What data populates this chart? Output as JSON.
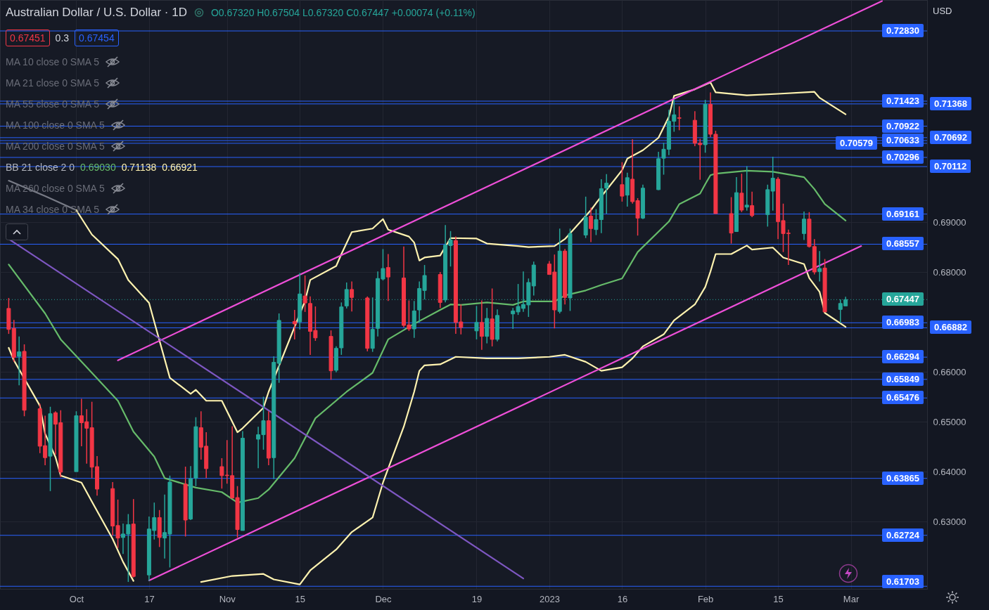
{
  "chart_data": {
    "type": "candlestick",
    "title": "Australian Dollar / U.S. Dollar · 1D",
    "subtitle": "O0.67320 H0.67504 L0.67320 C0.67447 +0.00074 (+0.11%)",
    "annotations": [
      "0.67451",
      "0.3",
      "0.67454",
      "MA 10 close 0 SMA 5",
      "MA 21 close 0 SMA 5",
      "MA 55 close 0 SMA 5",
      "MA 100 close 0 SMA 5",
      "MA 200 close 0 SMA 5",
      "BB 21 close 2 0",
      "0.69030",
      "0.71138",
      "0.66921",
      "MA 260 close 0 SMA 5",
      "MA 34 close 0 SMA 5",
      "USD"
    ],
    "x": [
      "2022-09-20",
      "2022-09-21",
      "2022-09-22",
      "2022-09-23",
      "2022-09-26",
      "2022-09-27",
      "2022-09-28",
      "2022-09-29",
      "2022-09-30",
      "2022-10-03",
      "2022-10-04",
      "2022-10-05",
      "2022-10-06",
      "2022-10-07",
      "2022-10-10",
      "2022-10-11",
      "2022-10-12",
      "2022-10-13",
      "2022-10-14",
      "2022-10-17",
      "2022-10-18",
      "2022-10-19",
      "2022-10-20",
      "2022-10-21",
      "2022-10-24",
      "2022-10-25",
      "2022-10-26",
      "2022-10-27",
      "2022-10-28",
      "2022-10-31",
      "2022-11-01",
      "2022-11-02",
      "2022-11-03",
      "2022-11-04",
      "2022-11-07",
      "2022-11-08",
      "2022-11-09",
      "2022-11-10",
      "2022-11-11",
      "2022-11-14",
      "2022-11-15",
      "2022-11-16",
      "2022-11-17",
      "2022-11-18",
      "2022-11-21",
      "2022-11-22",
      "2022-11-23",
      "2022-11-24",
      "2022-11-25",
      "2022-11-28",
      "2022-11-29",
      "2022-11-30",
      "2022-12-01",
      "2022-12-02",
      "2022-12-05",
      "2022-12-06",
      "2022-12-07",
      "2022-12-08",
      "2022-12-09",
      "2022-12-12",
      "2022-12-13",
      "2022-12-14",
      "2022-12-15",
      "2022-12-16",
      "2022-12-19",
      "2022-12-20",
      "2022-12-21",
      "2022-12-22",
      "2022-12-23",
      "2022-12-26",
      "2022-12-27",
      "2022-12-28",
      "2022-12-29",
      "2022-12-30",
      "2023-01-02",
      "2023-01-03",
      "2023-01-04",
      "2023-01-05",
      "2023-01-06",
      "2023-01-09",
      "2023-01-10",
      "2023-01-11",
      "2023-01-12",
      "2023-01-13",
      "2023-01-16",
      "2023-01-17",
      "2023-01-18",
      "2023-01-19",
      "2023-01-20",
      "2023-01-23",
      "2023-01-24",
      "2023-01-25",
      "2023-01-26",
      "2023-01-27",
      "2023-01-30",
      "2023-01-31",
      "2023-02-01",
      "2023-02-02",
      "2023-02-03",
      "2023-02-06",
      "2023-02-07",
      "2023-02-08",
      "2023-02-09",
      "2023-02-10",
      "2023-02-13",
      "2023-02-14",
      "2023-02-15",
      "2023-02-16",
      "2023-02-17",
      "2023-02-20",
      "2023-02-21",
      "2023-02-22",
      "2023-02-23",
      "2023-02-24",
      "2023-02-27",
      "2023-02-28"
    ],
    "ohlc": [
      [
        0.6727,
        0.6748,
        0.6676,
        0.6685
      ],
      [
        0.6687,
        0.6704,
        0.662,
        0.6629
      ],
      [
        0.6631,
        0.6671,
        0.6573,
        0.664
      ],
      [
        0.6641,
        0.6655,
        0.6511,
        0.6523
      ],
      [
        0.6526,
        0.6536,
        0.6437,
        0.6451
      ],
      [
        0.6452,
        0.6512,
        0.6413,
        0.6428
      ],
      [
        0.6431,
        0.653,
        0.6361,
        0.6516
      ],
      [
        0.6518,
        0.6521,
        0.6434,
        0.6495
      ],
      [
        0.6498,
        0.6523,
        0.6389,
        0.6399
      ],
      [
        0.64,
        0.6521,
        0.64,
        0.6512
      ],
      [
        0.6512,
        0.6546,
        0.6451,
        0.6498
      ],
      [
        0.65,
        0.6525,
        0.6416,
        0.6487
      ],
      [
        0.6488,
        0.654,
        0.6387,
        0.6409
      ],
      [
        0.641,
        0.6431,
        0.6352,
        0.6365
      ],
      [
        0.6366,
        0.6379,
        0.6272,
        0.6291
      ],
      [
        0.6292,
        0.6344,
        0.6247,
        0.6267
      ],
      [
        0.6268,
        0.6296,
        0.6235,
        0.6275
      ],
      [
        0.6275,
        0.6315,
        0.6179,
        0.6294
      ],
      [
        0.6295,
        0.6345,
        0.6188,
        0.619
      ],
      [
        0.6193,
        0.631,
        0.6181,
        0.6285
      ],
      [
        0.6282,
        0.6338,
        0.6264,
        0.6308
      ],
      [
        0.6308,
        0.6323,
        0.6249,
        0.6268
      ],
      [
        0.6267,
        0.6354,
        0.6226,
        0.6278
      ],
      [
        0.6275,
        0.6392,
        0.6208,
        0.6379
      ],
      [
        0.6375,
        0.641,
        0.627,
        0.6303
      ],
      [
        0.6305,
        0.6411,
        0.6303,
        0.6386
      ],
      [
        0.6387,
        0.6509,
        0.6371,
        0.649
      ],
      [
        0.6488,
        0.6521,
        0.6424,
        0.6449
      ],
      [
        0.6451,
        0.6479,
        0.6387,
        0.6406
      ],
      [
        0.641,
        0.6427,
        0.6366,
        0.6392
      ],
      [
        0.6393,
        0.6463,
        0.6376,
        0.6392
      ],
      [
        0.6392,
        0.6491,
        0.6347,
        0.6347
      ],
      [
        0.6348,
        0.6371,
        0.6268,
        0.6284
      ],
      [
        0.6282,
        0.6481,
        0.6282,
        0.6467
      ],
      [
        0.6465,
        0.649,
        0.6407,
        0.6474
      ],
      [
        0.6474,
        0.655,
        0.6444,
        0.6502
      ],
      [
        0.6502,
        0.6521,
        0.6413,
        0.6427
      ],
      [
        0.6428,
        0.6631,
        0.6385,
        0.6619
      ],
      [
        0.6617,
        0.6717,
        0.6578,
        0.6703
      ],
      [
        0.6701,
        0.6724,
        0.6665,
        0.6696
      ],
      [
        0.67,
        0.6798,
        0.6685,
        0.6756
      ],
      [
        0.6752,
        0.6793,
        0.672,
        0.6738
      ],
      [
        0.6737,
        0.6751,
        0.6634,
        0.6681
      ],
      [
        0.6683,
        0.6731,
        0.6662,
        0.6668
      ],
      [
        0.6671,
        0.6683,
        0.6584,
        0.6602
      ],
      [
        0.6603,
        0.6651,
        0.6599,
        0.6647
      ],
      [
        0.6648,
        0.6739,
        0.6634,
        0.673
      ],
      [
        0.6732,
        0.6779,
        0.6727,
        0.6765
      ],
      [
        0.6765,
        0.6781,
        0.6721,
        0.6749
      ],
      [
        0.6748,
        0.6751,
        0.6641,
        0.6647
      ],
      [
        0.6647,
        0.6749,
        0.664,
        0.6685
      ],
      [
        0.6687,
        0.6801,
        0.6671,
        0.6787
      ],
      [
        0.6786,
        0.6846,
        0.6783,
        0.6807
      ],
      [
        0.6809,
        0.6836,
        0.6742,
        0.679
      ],
      [
        0.6788,
        0.6851,
        0.6689,
        0.6693
      ],
      [
        0.6694,
        0.6743,
        0.6682,
        0.6686
      ],
      [
        0.6686,
        0.6742,
        0.6668,
        0.6722
      ],
      [
        0.6724,
        0.6781,
        0.6699,
        0.6767
      ],
      [
        0.6763,
        0.6814,
        0.6745,
        0.6793
      ],
      [
        0.6795,
        0.68,
        0.6728,
        0.6739
      ],
      [
        0.6744,
        0.6894,
        0.6739,
        0.6854
      ],
      [
        0.6853,
        0.6882,
        0.6811,
        0.6864
      ],
      [
        0.6863,
        0.6871,
        0.6676,
        0.6699
      ],
      [
        0.67,
        0.6735,
        0.6675,
        0.6689
      ],
      [
        0.6682,
        0.6732,
        0.6665,
        0.6699
      ],
      [
        0.6699,
        0.6743,
        0.6644,
        0.6671
      ],
      [
        0.6671,
        0.6728,
        0.6657,
        0.6707
      ],
      [
        0.6706,
        0.6767,
        0.6651,
        0.6665
      ],
      [
        0.6665,
        0.6725,
        0.6661,
        0.6713
      ],
      [
        0.6716,
        0.6728,
        0.6686,
        0.6722
      ],
      [
        0.672,
        0.6776,
        0.6714,
        0.6731
      ],
      [
        0.6727,
        0.6801,
        0.672,
        0.6735
      ],
      [
        0.6734,
        0.6787,
        0.671,
        0.6779
      ],
      [
        0.6772,
        0.6821,
        0.6753,
        0.6814
      ],
      [
        0.6816,
        0.6822,
        0.6795,
        0.6795
      ],
      [
        0.68,
        0.6835,
        0.6687,
        0.6724
      ],
      [
        0.6721,
        0.6887,
        0.6717,
        0.6842
      ],
      [
        0.6842,
        0.6846,
        0.6735,
        0.6749
      ],
      [
        0.6748,
        0.6887,
        0.6722,
        0.6877
      ],
      [
        0.6874,
        0.6951,
        0.6868,
        0.691
      ],
      [
        0.6912,
        0.6929,
        0.686,
        0.6887
      ],
      [
        0.6885,
        0.6926,
        0.6874,
        0.6905
      ],
      [
        0.6905,
        0.6986,
        0.6878,
        0.6967
      ],
      [
        0.6968,
        0.6996,
        0.6917,
        0.6978
      ],
      [
        0.6975,
        0.702,
        0.6941,
        0.6952
      ],
      [
        0.6954,
        0.6999,
        0.6931,
        0.6989
      ],
      [
        0.6986,
        0.7066,
        0.6937,
        0.6941
      ],
      [
        0.6943,
        0.6948,
        0.6873,
        0.6908
      ],
      [
        0.6908,
        0.6975,
        0.6906,
        0.6968
      ],
      [
        0.6965,
        0.7041,
        0.6964,
        0.7027
      ],
      [
        0.7028,
        0.7059,
        0.6995,
        0.7046
      ],
      [
        0.7046,
        0.7125,
        0.7034,
        0.7102
      ],
      [
        0.7102,
        0.7145,
        0.7081,
        0.7115
      ],
      [
        0.7109,
        0.7132,
        0.7084,
        0.7108
      ],
      [
        0.7104,
        0.7122,
        0.7052,
        0.7058
      ],
      [
        0.7058,
        0.7067,
        0.6985,
        0.7055
      ],
      [
        0.7055,
        0.7145,
        0.7039,
        0.7136
      ],
      [
        0.7136,
        0.716,
        0.707,
        0.7076
      ],
      [
        0.7076,
        0.7083,
        0.6917,
        0.6917
      ],
      [
        0.6917,
        0.695,
        0.6857,
        0.6878
      ],
      [
        0.6881,
        0.699,
        0.6881,
        0.6959
      ],
      [
        0.6958,
        0.6997,
        0.692,
        0.6924
      ],
      [
        0.693,
        0.7012,
        0.6923,
        0.6934
      ],
      [
        0.6933,
        0.6961,
        0.691,
        0.6913
      ],
      [
        0.6915,
        0.6975,
        0.6891,
        0.6965
      ],
      [
        0.6962,
        0.7031,
        0.6923,
        0.6988
      ],
      [
        0.6986,
        0.699,
        0.6866,
        0.6901
      ],
      [
        0.6903,
        0.6937,
        0.684,
        0.6877
      ],
      [
        0.6878,
        0.6885,
        0.6814,
        0.6877
      ],
      [
        0.6877,
        0.6921,
        0.6864,
        0.6906
      ],
      [
        0.6906,
        0.692,
        0.6849,
        0.6851
      ],
      [
        0.6851,
        0.6866,
        0.6795,
        0.68
      ],
      [
        0.6801,
        0.6842,
        0.6781,
        0.6807
      ],
      [
        0.6808,
        0.6826,
        0.672,
        0.672
      ],
      [
        0.6725,
        0.6745,
        0.6698,
        0.6737
      ],
      [
        0.6732,
        0.67504,
        0.6732,
        0.67447
      ]
    ],
    "series": [
      {
        "type": "line",
        "color": "#787b86",
        "x": [
          "2022-09-20",
          "2022-09-27",
          "2022-10-03"
        ],
        "values": [
          0.6983,
          0.6952,
          0.6924
        ]
      },
      {
        "type": "line",
        "color": "#fff3b0",
        "x": [
          "2022-10-03",
          "2022-10-06",
          "2022-10-11",
          "2022-10-13",
          "2022-10-17",
          "2022-10-18",
          "2022-10-21",
          "2022-10-25",
          "2022-10-26",
          "2022-10-28",
          "2022-10-31",
          "2022-11-03",
          "2022-11-04",
          "2022-11-08",
          "2022-11-09",
          "2022-11-16",
          "2022-11-17",
          "2022-11-22",
          "2022-11-23",
          "2022-11-25",
          "2022-11-29",
          "2022-12-01",
          "2022-12-02",
          "2022-12-06",
          "2022-12-07",
          "2022-12-08",
          "2022-12-09",
          "2022-12-12",
          "2022-12-14",
          "2022-12-19",
          "2022-12-21",
          "2022-12-27",
          "2022-12-29",
          "2023-01-03",
          "2023-01-05",
          "2023-01-10",
          "2023-01-11",
          "2023-01-16",
          "2023-01-17",
          "2023-01-20",
          "2023-01-23",
          "2023-01-25",
          "2023-01-26",
          "2023-01-30",
          "2023-02-02",
          "2023-02-03",
          "2023-02-09",
          "2023-02-15",
          "2023-02-22",
          "2023-02-23",
          "2023-02-28"
        ],
        "values": [
          0.6924,
          0.6875,
          0.6826,
          0.6784,
          0.6738,
          0.67,
          0.6588,
          0.6556,
          0.6564,
          0.6542,
          0.6542,
          0.6479,
          0.6487,
          0.6528,
          0.656,
          0.6742,
          0.6784,
          0.6812,
          0.6836,
          0.688,
          0.6887,
          0.6906,
          0.6885,
          0.6871,
          0.6859,
          0.6823,
          0.6829,
          0.6833,
          0.6868,
          0.6867,
          0.6857,
          0.6852,
          0.685,
          0.6852,
          0.6866,
          0.6924,
          0.6938,
          0.7004,
          0.7027,
          0.7044,
          0.7069,
          0.7111,
          0.7153,
          0.7166,
          0.718,
          0.716,
          0.7154,
          0.7157,
          0.7161,
          0.7149,
          0.7116
        ]
      },
      {
        "type": "line",
        "color": "#66bb6a",
        "x": [
          "2022-09-20",
          "2022-09-27",
          "2022-09-30",
          "2022-10-06",
          "2022-10-11",
          "2022-10-14",
          "2022-10-18",
          "2022-10-20",
          "2022-10-26",
          "2022-10-31",
          "2022-11-03",
          "2022-11-07",
          "2022-11-09",
          "2022-11-14",
          "2022-11-18",
          "2022-11-24",
          "2022-11-29",
          "2022-12-02",
          "2022-12-07",
          "2022-12-12",
          "2022-12-14",
          "2022-12-16",
          "2022-12-21",
          "2022-12-26",
          "2022-12-28",
          "2023-01-03",
          "2023-01-05",
          "2023-01-09",
          "2023-01-12",
          "2023-01-16",
          "2023-01-19",
          "2023-01-25",
          "2023-01-27",
          "2023-01-31",
          "2023-02-01",
          "2023-02-02",
          "2023-02-03",
          "2023-02-09",
          "2023-02-14",
          "2023-02-20",
          "2023-02-22",
          "2023-02-24",
          "2023-02-28"
        ],
        "values": [
          0.6815,
          0.6717,
          0.6665,
          0.6598,
          0.6542,
          0.648,
          0.643,
          0.6387,
          0.6368,
          0.6359,
          0.6338,
          0.6347,
          0.6364,
          0.6427,
          0.6507,
          0.656,
          0.6598,
          0.6665,
          0.6696,
          0.6724,
          0.6735,
          0.6734,
          0.6739,
          0.6734,
          0.6741,
          0.6741,
          0.6753,
          0.6763,
          0.6774,
          0.6787,
          0.684,
          0.6901,
          0.6936,
          0.6957,
          0.6976,
          0.6994,
          0.6997,
          0.7003,
          0.7001,
          0.699,
          0.6966,
          0.6936,
          0.6903
        ]
      },
      {
        "type": "line",
        "color": "#fff3b0",
        "x": [
          "2022-09-20",
          "2022-09-21",
          "2022-09-26",
          "2022-09-27",
          "2022-09-29",
          "2022-09-30",
          "2022-10-04",
          "2022-10-06",
          "2022-10-10",
          "2022-10-12",
          "2022-10-14",
          "2022-10-17",
          "2022-10-26",
          "2022-10-27",
          "2022-11-02",
          "2022-11-08",
          "2022-11-10",
          "2022-11-15",
          "2022-11-17",
          "2022-11-22",
          "2022-11-25",
          "2022-11-29",
          "2022-12-01",
          "2022-12-05",
          "2022-12-07",
          "2022-12-08",
          "2022-12-09",
          "2022-12-12",
          "2022-12-15",
          "2022-12-21",
          "2022-12-27",
          "2023-01-02",
          "2023-01-05",
          "2023-01-09",
          "2023-01-12",
          "2023-01-16",
          "2023-01-18",
          "2023-01-20",
          "2023-01-24",
          "2023-01-26",
          "2023-01-30",
          "2023-02-01",
          "2023-02-02",
          "2023-02-03",
          "2023-02-06",
          "2023-02-09",
          "2023-02-10",
          "2023-02-14",
          "2023-02-16",
          "2023-02-20",
          "2023-02-21",
          "2023-02-23",
          "2023-02-24",
          "2023-02-28"
        ],
        "values": [
          0.6648,
          0.6623,
          0.6532,
          0.6476,
          0.6429,
          0.6392,
          0.6378,
          0.634,
          0.6265,
          0.6219,
          0.6181,
          null,
          null,
          0.6179,
          0.6191,
          0.6195,
          0.6184,
          0.6174,
          0.6202,
          0.6244,
          0.6279,
          0.6308,
          0.6378,
          0.649,
          0.656,
          0.6602,
          0.6613,
          0.6615,
          0.663,
          0.6627,
          0.6627,
          0.663,
          0.6634,
          0.662,
          0.6602,
          0.6609,
          0.6627,
          0.6651,
          0.6675,
          0.6703,
          0.6735,
          0.677,
          0.6801,
          0.6836,
          0.6836,
          0.6853,
          0.6845,
          0.6849,
          0.6829,
          0.6816,
          0.6788,
          0.676,
          0.6718,
          0.669
        ]
      },
      {
        "type": "line",
        "color": "#ee4fd8",
        "x": [
          "2022-10-11",
          "2023-03-07"
        ],
        "values": [
          0.6623,
          0.7343
        ]
      },
      {
        "type": "line",
        "color": "#ee4fd8",
        "x": [
          "2022-10-17",
          "2023-03-03"
        ],
        "values": [
          0.6182,
          0.6852
        ]
      },
      {
        "type": "line",
        "color": "#7e57c2",
        "x": [
          "2022-09-20",
          "2022-12-28"
        ],
        "values": [
          0.6866,
          0.6186
        ]
      }
    ],
    "ref_lines": [
      {
        "axis": "y",
        "value": 0.7283,
        "label": "0.72830",
        "color": "#2962ff"
      },
      {
        "axis": "y",
        "value": 0.71423,
        "label": "0.71423",
        "color": "#2962ff"
      },
      {
        "axis": "y",
        "value": 0.71368,
        "label": "0.71368",
        "color": "#2962ff"
      },
      {
        "axis": "y",
        "value": 0.70922,
        "label": "0.70922",
        "color": "#2962ff"
      },
      {
        "axis": "y",
        "value": 0.70692,
        "label": "0.70692",
        "color": "#2962ff"
      },
      {
        "axis": "y",
        "value": 0.70633,
        "label": "0.70633",
        "color": "#2962ff"
      },
      {
        "axis": "y",
        "value": 0.70579,
        "label": "0.70579",
        "color": "#2962ff"
      },
      {
        "axis": "y",
        "value": 0.70296,
        "label": "0.70296",
        "color": "#2962ff"
      },
      {
        "axis": "y",
        "value": 0.70112,
        "label": "0.70112",
        "color": "#2962ff"
      },
      {
        "axis": "y",
        "value": 0.69161,
        "label": "0.69161",
        "color": "#2962ff"
      },
      {
        "axis": "y",
        "value": 0.68557,
        "label": "0.68557",
        "color": "#2962ff"
      },
      {
        "axis": "y",
        "value": 0.67447,
        "label": "0.67447",
        "color": "#26a69a",
        "line_style": "dotted"
      },
      {
        "axis": "y",
        "value": 0.66983,
        "label": "0.66983",
        "color": "#2962ff"
      },
      {
        "axis": "y",
        "value": 0.66882,
        "label": "0.66882",
        "color": "#2962ff"
      },
      {
        "axis": "y",
        "value": 0.66294,
        "label": "0.66294",
        "color": "#2962ff"
      },
      {
        "axis": "y",
        "value": 0.65849,
        "label": "0.65849",
        "color": "#2962ff"
      },
      {
        "axis": "y",
        "value": 0.65476,
        "label": "0.65476",
        "color": "#2962ff"
      },
      {
        "axis": "y",
        "value": 0.63865,
        "label": "0.63865",
        "color": "#2962ff"
      },
      {
        "axis": "y",
        "value": 0.62724,
        "label": "0.62724",
        "color": "#2962ff"
      },
      {
        "axis": "y",
        "value": 0.61703,
        "label": "0.61703",
        "color": "#2962ff"
      }
    ],
    "xlim": [
      "2022-09-19",
      "2023-03-15"
    ],
    "xticks": [
      {
        "value": "2022-10-03",
        "label": "Oct"
      },
      {
        "value": "2022-10-17",
        "label": "17"
      },
      {
        "value": "2022-11-01",
        "label": "Nov"
      },
      {
        "value": "2022-11-15",
        "label": "15"
      },
      {
        "value": "2022-12-01",
        "label": "Dec"
      },
      {
        "value": "2022-12-19",
        "label": "19"
      },
      {
        "value": "2023-01-02",
        "label": "2023"
      },
      {
        "value": "2023-01-16",
        "label": "16"
      },
      {
        "value": "2023-02-01",
        "label": "Feb"
      },
      {
        "value": "2023-02-15",
        "label": "15"
      },
      {
        "value": "2023-03-01",
        "label": "Mar"
      }
    ],
    "ylim": [
      0.6165,
      0.7345
    ],
    "yticks": [
      {
        "value": 0.63,
        "label": "0.63000"
      },
      {
        "value": 0.64,
        "label": "0.64000"
      },
      {
        "value": 0.65,
        "label": "0.65000"
      },
      {
        "value": 0.66,
        "label": "0.66000"
      },
      {
        "value": 0.68,
        "label": "0.68000"
      },
      {
        "value": 0.69,
        "label": "0.69000"
      }
    ],
    "grid": true
  }
}
